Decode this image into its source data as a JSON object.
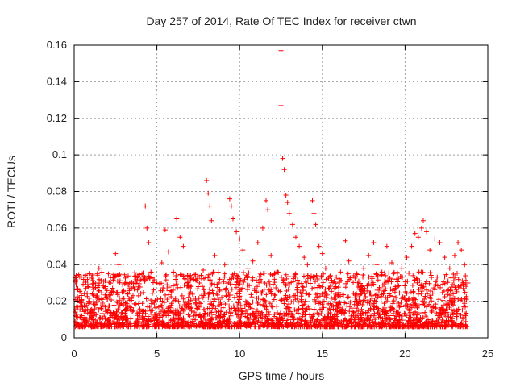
{
  "chart_data": {
    "type": "scatter",
    "title": "Day 257 of 2014, Rate Of TEC Index for receiver ctwn",
    "xlabel": "GPS time / hours",
    "ylabel": "ROTI / TECUs",
    "xlim": [
      0,
      25
    ],
    "ylim": [
      0,
      0.16
    ],
    "xticks": [
      0,
      5,
      10,
      15,
      20,
      25
    ],
    "yticks": [
      0,
      0.02,
      0.04,
      0.06,
      0.08,
      0.1,
      0.12,
      0.14,
      0.16
    ],
    "xtick_labels": [
      "0",
      "5",
      "10",
      "15",
      "20",
      "25"
    ],
    "ytick_labels": [
      "0",
      "0.02",
      "0.04",
      "0.06",
      "0.08",
      "0.1",
      "0.12",
      "0.14",
      "0.16"
    ],
    "grid": true,
    "marker": "+",
    "color": "#ff0000",
    "series": [
      {
        "name": "ROTI",
        "points": [
          [
            0.1,
            0.012
          ],
          [
            0.3,
            0.022
          ],
          [
            0.5,
            0.017
          ],
          [
            0.7,
            0.027
          ],
          [
            0.9,
            0.035
          ],
          [
            1.1,
            0.024
          ],
          [
            1.3,
            0.03
          ],
          [
            1.5,
            0.038
          ],
          [
            1.7,
            0.021
          ],
          [
            1.9,
            0.028
          ],
          [
            2.2,
            0.033
          ],
          [
            2.5,
            0.046
          ],
          [
            2.7,
            0.04
          ],
          [
            2.9,
            0.025
          ],
          [
            3.2,
            0.029
          ],
          [
            3.5,
            0.027
          ],
          [
            3.8,
            0.031
          ],
          [
            4.1,
            0.035
          ],
          [
            4.3,
            0.072
          ],
          [
            4.4,
            0.06
          ],
          [
            4.5,
            0.052
          ],
          [
            4.7,
            0.033
          ],
          [
            5.0,
            0.03
          ],
          [
            5.3,
            0.041
          ],
          [
            5.5,
            0.059
          ],
          [
            5.7,
            0.047
          ],
          [
            6.0,
            0.036
          ],
          [
            6.2,
            0.065
          ],
          [
            6.4,
            0.055
          ],
          [
            6.6,
            0.05
          ],
          [
            6.9,
            0.029
          ],
          [
            7.2,
            0.032
          ],
          [
            7.5,
            0.028
          ],
          [
            7.8,
            0.037
          ],
          [
            8.0,
            0.086
          ],
          [
            8.1,
            0.079
          ],
          [
            8.2,
            0.072
          ],
          [
            8.3,
            0.064
          ],
          [
            8.5,
            0.045
          ],
          [
            8.8,
            0.032
          ],
          [
            9.1,
            0.04
          ],
          [
            9.4,
            0.076
          ],
          [
            9.5,
            0.072
          ],
          [
            9.6,
            0.065
          ],
          [
            9.8,
            0.058
          ],
          [
            10.0,
            0.054
          ],
          [
            10.2,
            0.048
          ],
          [
            10.5,
            0.038
          ],
          [
            10.8,
            0.042
          ],
          [
            11.1,
            0.052
          ],
          [
            11.4,
            0.06
          ],
          [
            11.6,
            0.075
          ],
          [
            11.7,
            0.07
          ],
          [
            11.9,
            0.045
          ],
          [
            12.1,
            0.032
          ],
          [
            12.3,
            0.036
          ],
          [
            12.5,
            0.157
          ],
          [
            12.5,
            0.127
          ],
          [
            12.6,
            0.098
          ],
          [
            12.7,
            0.092
          ],
          [
            12.8,
            0.078
          ],
          [
            12.9,
            0.074
          ],
          [
            13.0,
            0.068
          ],
          [
            13.2,
            0.062
          ],
          [
            13.4,
            0.055
          ],
          [
            13.6,
            0.05
          ],
          [
            13.9,
            0.044
          ],
          [
            14.1,
            0.04
          ],
          [
            14.4,
            0.075
          ],
          [
            14.5,
            0.068
          ],
          [
            14.6,
            0.062
          ],
          [
            14.8,
            0.05
          ],
          [
            15.0,
            0.046
          ],
          [
            15.2,
            0.038
          ],
          [
            15.5,
            0.034
          ],
          [
            15.8,
            0.028
          ],
          [
            16.1,
            0.036
          ],
          [
            16.4,
            0.053
          ],
          [
            16.6,
            0.042
          ],
          [
            16.9,
            0.034
          ],
          [
            17.2,
            0.031
          ],
          [
            17.5,
            0.038
          ],
          [
            17.8,
            0.045
          ],
          [
            18.1,
            0.052
          ],
          [
            18.3,
            0.04
          ],
          [
            18.6,
            0.036
          ],
          [
            18.9,
            0.05
          ],
          [
            19.2,
            0.041
          ],
          [
            19.5,
            0.032
          ],
          [
            19.8,
            0.038
          ],
          [
            20.1,
            0.044
          ],
          [
            20.4,
            0.05
          ],
          [
            20.6,
            0.057
          ],
          [
            20.8,
            0.055
          ],
          [
            21.0,
            0.06
          ],
          [
            21.1,
            0.064
          ],
          [
            21.3,
            0.058
          ],
          [
            21.5,
            0.048
          ],
          [
            21.8,
            0.054
          ],
          [
            22.1,
            0.052
          ],
          [
            22.4,
            0.044
          ],
          [
            22.7,
            0.038
          ],
          [
            23.0,
            0.045
          ],
          [
            23.2,
            0.052
          ],
          [
            23.4,
            0.048
          ],
          [
            23.6,
            0.04
          ],
          [
            23.8,
            0.03
          ]
        ]
      }
    ]
  }
}
